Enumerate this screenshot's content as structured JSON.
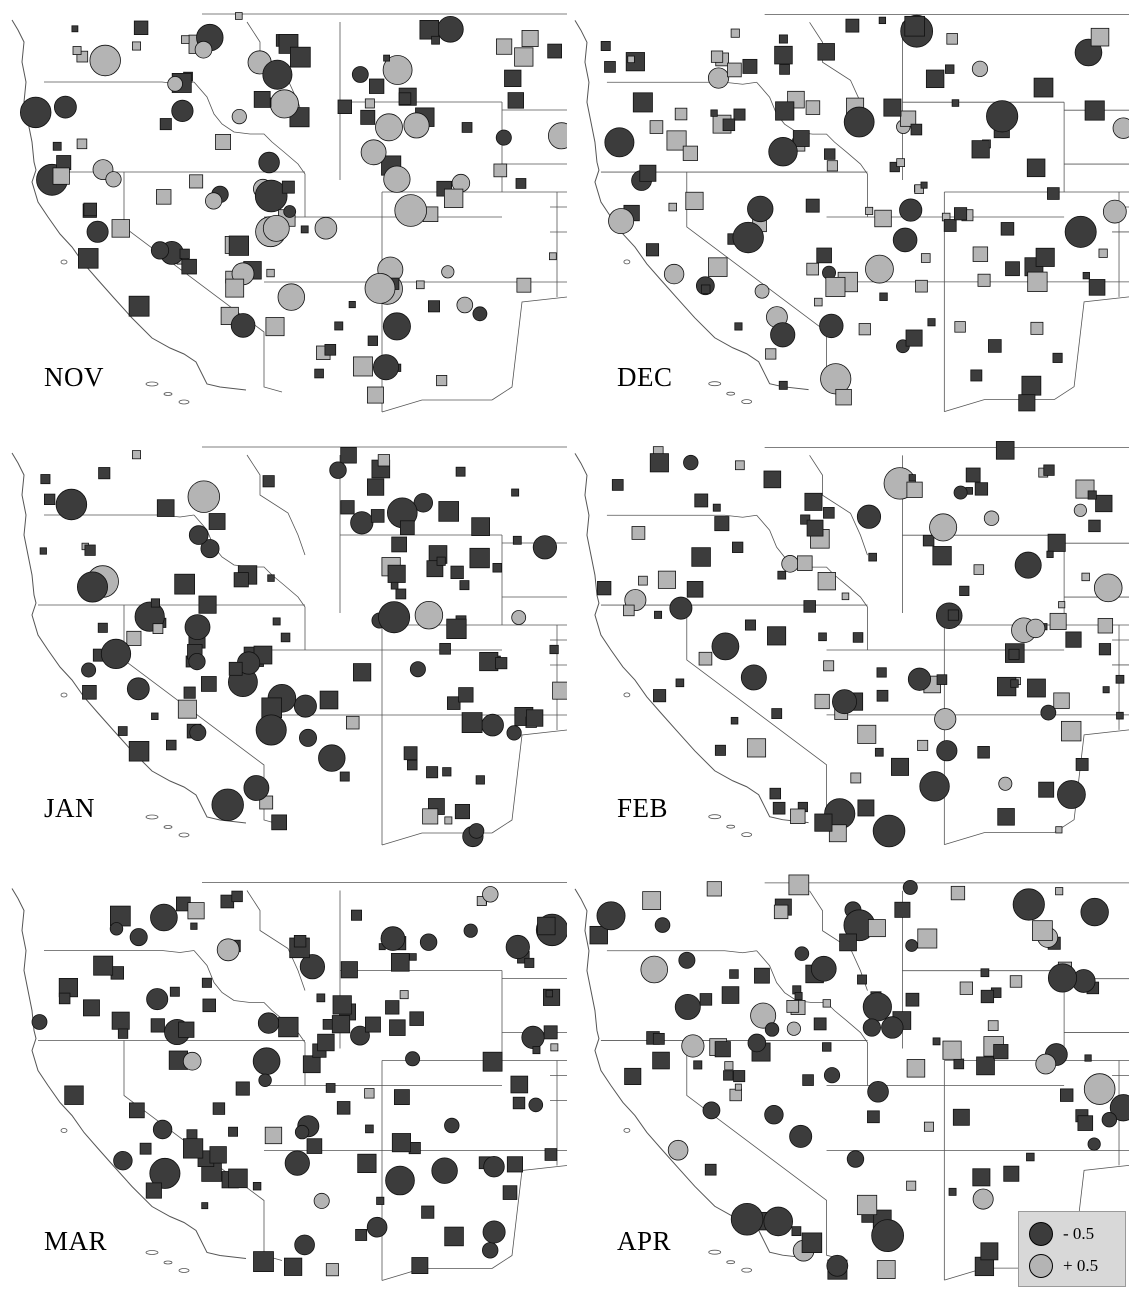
{
  "colors": {
    "negative": "#3c3c3c",
    "positive": "#b4b4b4",
    "boundary": "#555555",
    "legend_bg": "#d8d8d8"
  },
  "panels": [
    {
      "month": "NOV"
    },
    {
      "month": "DEC"
    },
    {
      "month": "JAN"
    },
    {
      "month": "FEB"
    },
    {
      "month": "MAR"
    },
    {
      "month": "APR"
    }
  ],
  "legend": {
    "negative_label": "- 0.5",
    "positive_label": "+ 0.5"
  }
}
